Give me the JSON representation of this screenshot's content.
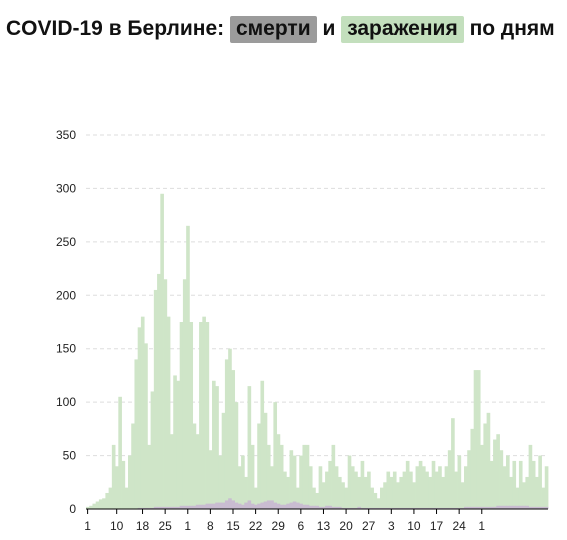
{
  "title": {
    "part1": "COVID-19 в Берлине:",
    "deaths_label": "смерти",
    "conj": "и",
    "infections_label": "заражения",
    "part2": "по дням"
  },
  "colors": {
    "infections": "#cfe5c8",
    "deaths": "#c9bcd1",
    "deaths_highlight": "#9b9b9b",
    "infections_highlight": "#c3dfbd",
    "grid": "#dddddd",
    "axis": "#000000"
  },
  "chart_data": {
    "type": "bar",
    "stacked_overlay": true,
    "ylim": [
      0,
      350
    ],
    "yticks": [
      0,
      50,
      100,
      150,
      200,
      250,
      300,
      350
    ],
    "xticks": [
      "1",
      "10",
      "18",
      "25",
      "1",
      "8",
      "15",
      "22",
      "29",
      "6",
      "13",
      "20",
      "27",
      "3",
      "10",
      "17",
      "24",
      "1"
    ],
    "grid": true,
    "series": [
      {
        "key": "infections",
        "values": [
          2,
          3,
          5,
          7,
          9,
          10,
          15,
          20,
          60,
          40,
          105,
          45,
          20,
          50,
          80,
          140,
          170,
          180,
          155,
          60,
          110,
          205,
          220,
          295,
          215,
          180,
          70,
          125,
          120,
          175,
          215,
          265,
          175,
          80,
          70,
          175,
          180,
          175,
          55,
          120,
          115,
          50,
          90,
          140,
          150,
          130,
          100,
          40,
          50,
          30,
          115,
          60,
          20,
          80,
          120,
          90,
          60,
          40,
          100,
          70,
          60,
          35,
          30,
          55,
          50,
          20,
          50,
          60,
          60,
          40,
          20,
          15,
          40,
          25,
          35,
          45,
          60,
          40,
          30,
          25,
          20,
          50,
          40,
          35,
          30,
          45,
          30,
          35,
          20,
          15,
          10,
          20,
          25,
          35,
          30,
          35,
          25,
          30,
          35,
          45,
          35,
          25,
          40,
          45,
          40,
          35,
          30,
          45,
          35,
          40,
          30,
          40,
          55,
          85,
          35,
          50,
          25,
          40,
          55,
          75,
          130,
          130,
          60,
          80,
          90,
          45,
          65,
          70,
          55,
          40,
          50,
          30,
          45,
          20,
          45,
          25,
          30,
          60,
          45,
          30,
          50,
          20,
          40
        ]
      },
      {
        "key": "deaths",
        "values": [
          0,
          0,
          0,
          0,
          0,
          0,
          0,
          0,
          0,
          0,
          0,
          0,
          0,
          0,
          0,
          0,
          1,
          1,
          1,
          1,
          1,
          2,
          2,
          2,
          2,
          2,
          2,
          2,
          2,
          3,
          3,
          3,
          3,
          3,
          4,
          4,
          4,
          5,
          5,
          5,
          6,
          6,
          6,
          8,
          10,
          8,
          6,
          5,
          4,
          6,
          8,
          5,
          4,
          5,
          6,
          7,
          8,
          8,
          6,
          5,
          4,
          4,
          5,
          6,
          7,
          6,
          5,
          4,
          4,
          3,
          3,
          3,
          2,
          2,
          3,
          3,
          2,
          2,
          2,
          1,
          1,
          1,
          1,
          1,
          2,
          1,
          1,
          1,
          1,
          1,
          1,
          1,
          1,
          1,
          1,
          1,
          1,
          1,
          1,
          1,
          1,
          1,
          1,
          1,
          1,
          1,
          1,
          1,
          1,
          1,
          1,
          1,
          1,
          1,
          1,
          1,
          1,
          2,
          2,
          2,
          2,
          2,
          2,
          2,
          2,
          2,
          2,
          3,
          3,
          3,
          3,
          3,
          3,
          3,
          3,
          3,
          3,
          2,
          2,
          2,
          2,
          2,
          2
        ]
      }
    ]
  }
}
